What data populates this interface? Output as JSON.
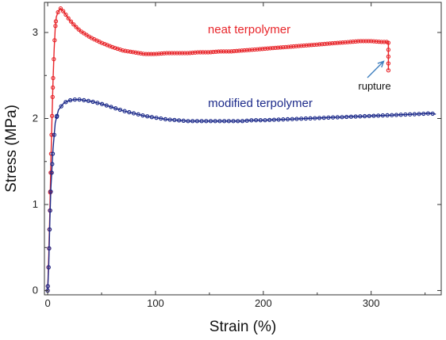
{
  "chart_data": {
    "type": "line",
    "xlabel": "Strain (%)",
    "ylabel": "Stress (MPa)",
    "xlim": [
      -3,
      365
    ],
    "ylim": [
      -0.05,
      3.35
    ],
    "x_ticks": [
      0,
      100,
      200,
      300
    ],
    "y_ticks": [
      0,
      1,
      2,
      3
    ],
    "grid": false,
    "legend": "none",
    "series": [
      {
        "name": "neat terpolymer",
        "color": "#e8262b",
        "points": [
          [
            0,
            0
          ],
          [
            1,
            0.4
          ],
          [
            2,
            0.9
          ],
          [
            3,
            1.5
          ],
          [
            4,
            2.0
          ],
          [
            5,
            2.45
          ],
          [
            6,
            2.8
          ],
          [
            7,
            3.05
          ],
          [
            8,
            3.18
          ],
          [
            10,
            3.25
          ],
          [
            12,
            3.28
          ],
          [
            15,
            3.24
          ],
          [
            20,
            3.15
          ],
          [
            25,
            3.08
          ],
          [
            30,
            3.02
          ],
          [
            40,
            2.94
          ],
          [
            50,
            2.88
          ],
          [
            60,
            2.83
          ],
          [
            70,
            2.79
          ],
          [
            80,
            2.77
          ],
          [
            90,
            2.75
          ],
          [
            100,
            2.75
          ],
          [
            110,
            2.76
          ],
          [
            120,
            2.76
          ],
          [
            130,
            2.76
          ],
          [
            140,
            2.77
          ],
          [
            150,
            2.77
          ],
          [
            160,
            2.78
          ],
          [
            170,
            2.78
          ],
          [
            180,
            2.79
          ],
          [
            190,
            2.8
          ],
          [
            200,
            2.81
          ],
          [
            210,
            2.82
          ],
          [
            220,
            2.83
          ],
          [
            230,
            2.84
          ],
          [
            240,
            2.85
          ],
          [
            250,
            2.86
          ],
          [
            260,
            2.87
          ],
          [
            270,
            2.88
          ],
          [
            280,
            2.89
          ],
          [
            290,
            2.9
          ],
          [
            300,
            2.9
          ],
          [
            310,
            2.89
          ],
          [
            316,
            2.89
          ],
          [
            316,
            2.75
          ],
          [
            316,
            2.56
          ]
        ]
      },
      {
        "name": "modified terpolymer",
        "color": "#1c2a8a",
        "points": [
          [
            0,
            0
          ],
          [
            1,
            0.3
          ],
          [
            2,
            0.8
          ],
          [
            3,
            1.2
          ],
          [
            5,
            1.65
          ],
          [
            7,
            1.95
          ],
          [
            10,
            2.1
          ],
          [
            15,
            2.18
          ],
          [
            20,
            2.21
          ],
          [
            25,
            2.22
          ],
          [
            30,
            2.22
          ],
          [
            40,
            2.2
          ],
          [
            50,
            2.17
          ],
          [
            60,
            2.13
          ],
          [
            70,
            2.09
          ],
          [
            80,
            2.06
          ],
          [
            90,
            2.03
          ],
          [
            100,
            2.01
          ],
          [
            110,
            1.99
          ],
          [
            120,
            1.98
          ],
          [
            130,
            1.97
          ],
          [
            140,
            1.97
          ],
          [
            150,
            1.97
          ],
          [
            160,
            1.97
          ],
          [
            170,
            1.97
          ],
          [
            180,
            1.97
          ],
          [
            190,
            1.98
          ],
          [
            200,
            1.98
          ],
          [
            220,
            1.99
          ],
          [
            240,
            2.0
          ],
          [
            260,
            2.01
          ],
          [
            280,
            2.02
          ],
          [
            300,
            2.03
          ],
          [
            320,
            2.04
          ],
          [
            340,
            2.05
          ],
          [
            355,
            2.06
          ],
          [
            360,
            2.05
          ]
        ]
      }
    ],
    "annotations": [
      {
        "text": "rupture",
        "points_to": [
          316,
          2.72
        ],
        "text_at": [
          308,
          2.33
        ]
      }
    ]
  }
}
